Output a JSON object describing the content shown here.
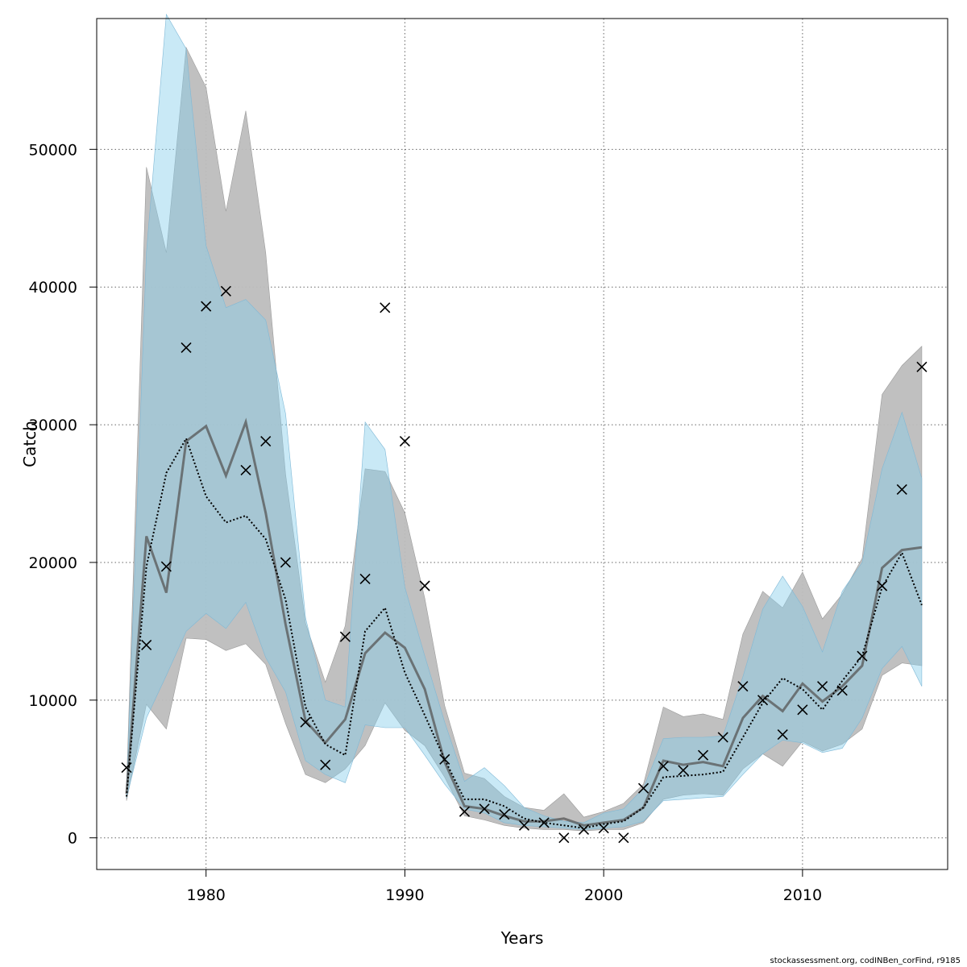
{
  "footer": "stockassessment.org, codINBen_corFind, r9185",
  "chart_data": {
    "type": "line",
    "xlabel": "Years",
    "ylabel": "Catch",
    "xlim": [
      1974.5,
      2017.3
    ],
    "ylim": [
      -2300,
      59500
    ],
    "xticks": [
      1980,
      1990,
      2000,
      2010
    ],
    "yticks": [
      0,
      10000,
      20000,
      30000,
      40000,
      50000
    ],
    "grid": true,
    "colors": {
      "band_grey": "#bdbdbd",
      "band_blue": "#87ceeb",
      "line_grey": "#555555",
      "line_dotted": "#000000",
      "marker": "#000000",
      "grid": "#666666"
    },
    "years": [
      1976,
      1977,
      1978,
      1979,
      1980,
      1981,
      1982,
      1983,
      1984,
      1985,
      1986,
      1987,
      1988,
      1989,
      1990,
      1991,
      1992,
      1993,
      1994,
      1995,
      1996,
      1997,
      1998,
      1999,
      2000,
      2001,
      2002,
      2003,
      2004,
      2005,
      2006,
      2007,
      2008,
      2009,
      2010,
      2011,
      2012,
      2013,
      2014,
      2015,
      2016
    ],
    "series": [
      {
        "values": [
          3200,
          21900,
          17800,
          28800,
          29900,
          26300,
          30200,
          23600,
          15500,
          8500,
          6900,
          8600,
          13400,
          14900,
          13800,
          10800,
          5500,
          2300,
          2100,
          1600,
          1200,
          1200,
          1400,
          900,
          1100,
          1300,
          2200,
          5600,
          5300,
          5500,
          5200,
          8700,
          10300,
          9200,
          11200,
          9900,
          11000,
          12500,
          19600,
          20900,
          21100
        ],
        "lower": [
          2700,
          9700,
          7900,
          14500,
          14400,
          13600,
          14100,
          12600,
          8300,
          4600,
          4000,
          5000,
          6700,
          9800,
          7800,
          6700,
          4400,
          1600,
          1300,
          900,
          700,
          600,
          600,
          500,
          600,
          600,
          1100,
          2800,
          3100,
          3200,
          3100,
          5000,
          6100,
          5200,
          7000,
          6300,
          6800,
          7900,
          11800,
          12700,
          12500
        ],
        "upper": [
          3700,
          48700,
          42500,
          57400,
          54500,
          45500,
          52800,
          42500,
          26400,
          15600,
          11300,
          15400,
          26800,
          26600,
          23600,
          17400,
          9600,
          4700,
          4300,
          3000,
          2200,
          2000,
          3200,
          1500,
          1900,
          2500,
          3900,
          9500,
          8800,
          9000,
          8600,
          14800,
          17900,
          16700,
          19300,
          15900,
          17700,
          20300,
          32200,
          34300,
          35700
        ]
      },
      {
        "values": [
          3000,
          19700,
          26500,
          29000,
          24800,
          22900,
          23400,
          21700,
          17300,
          9500,
          6800,
          6000,
          15000,
          16700,
          12000,
          8900,
          5700,
          2800,
          2800,
          2300,
          1400,
          1100,
          900,
          700,
          1000,
          1200,
          2200,
          4400,
          4500,
          4600,
          4800,
          7300,
          9800,
          11600,
          10800,
          9300,
          11400,
          13200,
          18200,
          20700,
          16900
        ],
        "lower": [
          2900,
          8700,
          11800,
          15000,
          16300,
          15200,
          17100,
          13100,
          10600,
          5600,
          4600,
          4000,
          8200,
          8000,
          8000,
          6000,
          3900,
          2100,
          1800,
          1100,
          900,
          800,
          700,
          600,
          700,
          800,
          1200,
          2700,
          2800,
          2900,
          3000,
          4600,
          6100,
          7100,
          6900,
          6200,
          6500,
          8700,
          12300,
          13900,
          11000
        ],
        "upper": [
          3100,
          42500,
          59800,
          57300,
          43000,
          38500,
          39100,
          37600,
          30800,
          16000,
          10000,
          9500,
          30200,
          28200,
          18200,
          13200,
          8400,
          4100,
          5100,
          3800,
          2200,
          1600,
          1200,
          1100,
          1800,
          2100,
          3600,
          7200,
          7300,
          7300,
          7400,
          11700,
          16600,
          19000,
          16800,
          13500,
          17900,
          20000,
          26800,
          30900,
          26100
        ]
      }
    ],
    "observed": [
      [
        1976,
        5100
      ],
      [
        1977,
        14000
      ],
      [
        1978,
        19700
      ],
      [
        1979,
        35600
      ],
      [
        1980,
        38600
      ],
      [
        1981,
        39700
      ],
      [
        1982,
        26700
      ],
      [
        1983,
        28800
      ],
      [
        1984,
        20000
      ],
      [
        1985,
        8400
      ],
      [
        1986,
        5300
      ],
      [
        1987,
        14600
      ],
      [
        1988,
        18800
      ],
      [
        1989,
        38500
      ],
      [
        1990,
        28800
      ],
      [
        1991,
        18300
      ],
      [
        1992,
        5700
      ],
      [
        1993,
        1900
      ],
      [
        1994,
        2100
      ],
      [
        1995,
        1700
      ],
      [
        1996,
        900
      ],
      [
        1997,
        1100
      ],
      [
        1998,
        0
      ],
      [
        1999,
        600
      ],
      [
        2000,
        700
      ],
      [
        2001,
        0
      ],
      [
        2002,
        3600
      ],
      [
        2003,
        5200
      ],
      [
        2004,
        4900
      ],
      [
        2005,
        6000
      ],
      [
        2006,
        7300
      ],
      [
        2007,
        11000
      ],
      [
        2008,
        10000
      ],
      [
        2009,
        7500
      ],
      [
        2010,
        9300
      ],
      [
        2011,
        11000
      ],
      [
        2012,
        10700
      ],
      [
        2013,
        13200
      ],
      [
        2014,
        18300
      ],
      [
        2015,
        25300
      ],
      [
        2016,
        34200
      ]
    ]
  }
}
